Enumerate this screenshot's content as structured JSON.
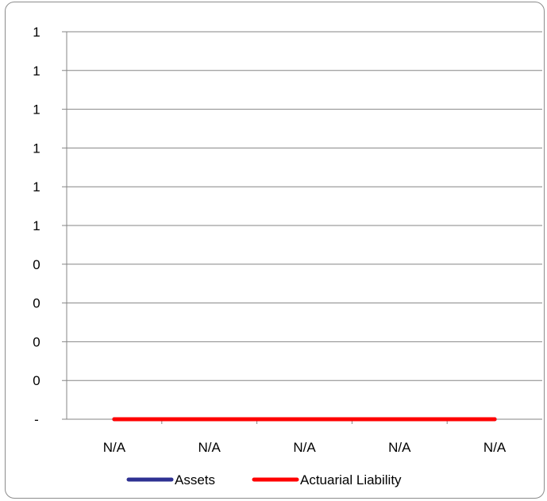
{
  "chart_data": {
    "type": "line",
    "categories": [
      "N/A",
      "N/A",
      "N/A",
      "N/A",
      "N/A"
    ],
    "y_tick_labels": [
      "-",
      "0",
      "0",
      "0",
      "0",
      "1",
      "1",
      "1",
      "1",
      "1",
      "1"
    ],
    "ylim": [
      0,
      1
    ],
    "grid": true,
    "legend_position": "bottom",
    "series": [
      {
        "name": "Assets",
        "color": "#2e3192",
        "values": [
          0,
          0,
          0,
          0,
          0
        ]
      },
      {
        "name": "Actuarial Liability",
        "color": "#ff0000",
        "values": [
          0,
          0,
          0,
          0,
          0
        ]
      }
    ]
  }
}
